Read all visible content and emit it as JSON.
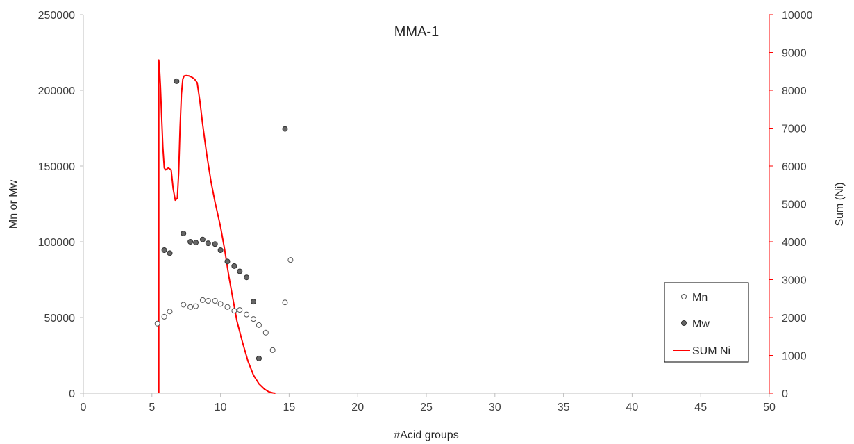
{
  "chart_data": {
    "type": "scatter",
    "title": "MMA-1",
    "xlabel": "#Acid groups",
    "ylabel": "Mn or Mw",
    "y2label": "Sum (Ni)",
    "xlim": [
      0,
      50
    ],
    "ylim": [
      0,
      250000
    ],
    "y2lim": [
      0,
      10000
    ],
    "xticks": [
      "0",
      "5",
      "10",
      "15",
      "20",
      "25",
      "30",
      "35",
      "40",
      "45",
      "50"
    ],
    "yticks": [
      "0",
      "50000",
      "100000",
      "150000",
      "200000",
      "250000"
    ],
    "y2ticks": [
      "0",
      "1000",
      "2000",
      "3000",
      "4000",
      "5000",
      "6000",
      "7000",
      "8000",
      "9000",
      "10000"
    ],
    "grid": false,
    "legend_position": "bottom-right",
    "series": [
      {
        "name": "Mn",
        "kind": "scatter",
        "axis": "left",
        "color": "#ffffff",
        "stroke": "#555555",
        "x": [
          5.4,
          5.9,
          6.3,
          7.3,
          7.8,
          8.2,
          8.7,
          9.1,
          9.6,
          10.0,
          10.5,
          11.0,
          11.4,
          11.9,
          12.4,
          12.8,
          13.3,
          13.8,
          14.7,
          15.1
        ],
        "y": [
          46000,
          50500,
          54000,
          58500,
          57000,
          57500,
          61500,
          61000,
          61000,
          59000,
          57000,
          54500,
          55000,
          52000,
          49000,
          45000,
          40000,
          28500,
          60000,
          88000
        ]
      },
      {
        "name": "Mw",
        "kind": "scatter",
        "axis": "left",
        "color": "#666666",
        "stroke": "#333333",
        "x": [
          5.9,
          6.3,
          6.8,
          7.3,
          7.8,
          8.2,
          8.7,
          9.1,
          9.6,
          10.0,
          10.5,
          11.0,
          11.4,
          11.9,
          12.4,
          12.8,
          14.7
        ],
        "y": [
          94500,
          92500,
          206000,
          105500,
          100000,
          99500,
          101500,
          99000,
          98500,
          94500,
          87000,
          84000,
          80500,
          76500,
          60500,
          23000,
          174500
        ]
      },
      {
        "name": "SUM Ni",
        "kind": "line",
        "axis": "right",
        "color": "#ff0000",
        "x": [
          5.5,
          5.5,
          5.55,
          5.62,
          5.7,
          5.8,
          5.9,
          6.0,
          6.2,
          6.4,
          6.55,
          6.7,
          6.85,
          6.95,
          7.05,
          7.15,
          7.25,
          7.35,
          7.5,
          7.7,
          7.9,
          8.1,
          8.3,
          8.5,
          8.7,
          9.0,
          9.3,
          9.6,
          10.0,
          10.3,
          10.6,
          10.9,
          11.2,
          11.6,
          12.0,
          12.4,
          12.8,
          13.2,
          13.5,
          13.8,
          14.0
        ],
        "y": [
          0,
          8800,
          8600,
          8100,
          7400,
          6500,
          5950,
          5900,
          5950,
          5900,
          5400,
          5100,
          5150,
          5800,
          7000,
          7900,
          8300,
          8380,
          8390,
          8380,
          8350,
          8300,
          8200,
          7700,
          7100,
          6300,
          5600,
          5050,
          4400,
          3800,
          3100,
          2500,
          1900,
          1350,
          850,
          480,
          250,
          110,
          40,
          10,
          0
        ]
      }
    ]
  }
}
